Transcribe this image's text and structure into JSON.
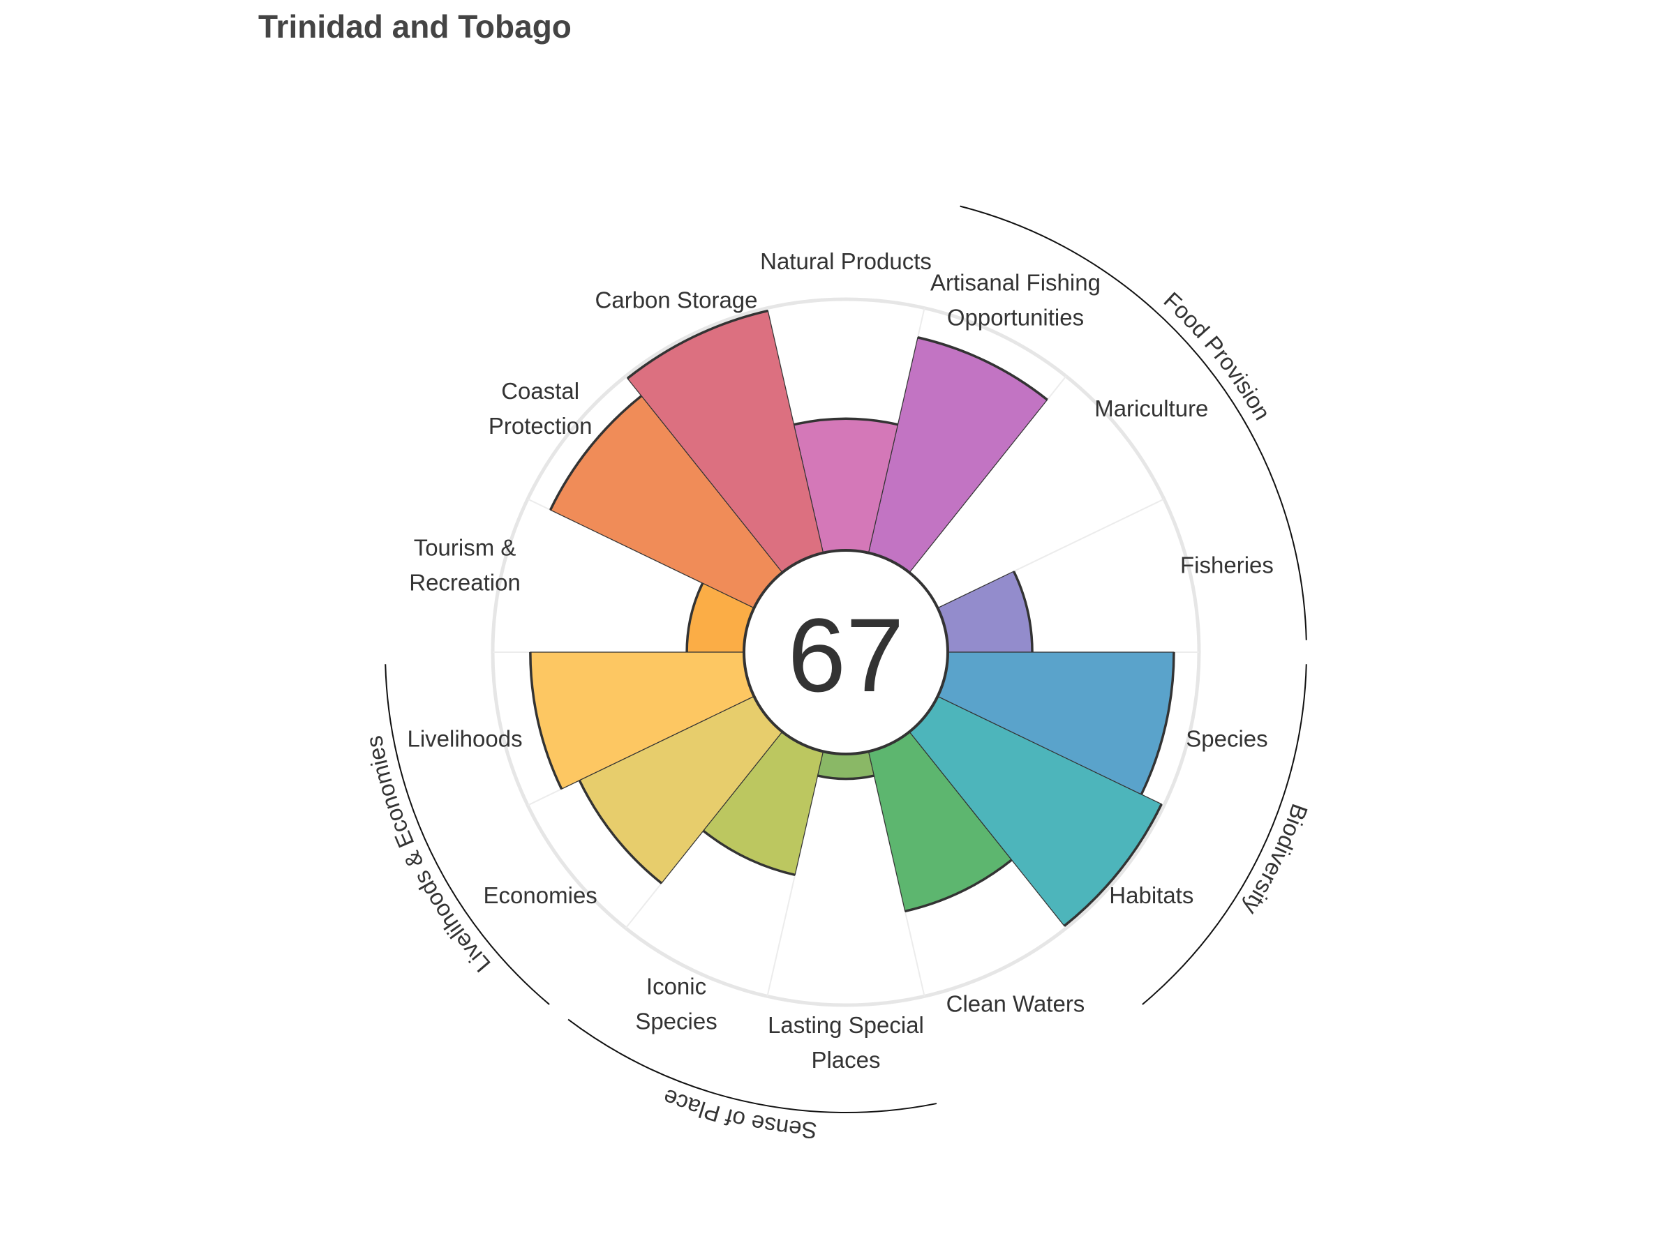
{
  "chart_data": {
    "type": "polar-bar",
    "title": "Trinidad and Tobago",
    "overall_score": "67",
    "rlim": [
      0,
      100
    ],
    "grid": true,
    "goals": [
      {
        "key": "fisheries",
        "label": [
          "Fisheries"
        ],
        "value": 34,
        "color": "#938ccc"
      },
      {
        "key": "mariculture",
        "label": [
          "Mariculture"
        ],
        "value": 0,
        "color": "#8e7fc7"
      },
      {
        "key": "artisanal-fishing",
        "label": [
          "Artisanal Fishing",
          "Opportunities"
        ],
        "value": 89,
        "color": "#c274c3"
      },
      {
        "key": "natural-products",
        "label": [
          "Natural Products"
        ],
        "value": 53,
        "color": "#d478b8"
      },
      {
        "key": "carbon-storage",
        "label": [
          "Carbon Storage"
        ],
        "value": 100,
        "color": "#dc7080"
      },
      {
        "key": "coastal-protection",
        "label": [
          "Coastal",
          "Protection"
        ],
        "value": 91,
        "color": "#f08c58"
      },
      {
        "key": "tourism",
        "label": [
          "Tourism &",
          "Recreation"
        ],
        "value": 23,
        "color": "#fbad46"
      },
      {
        "key": "livelihoods",
        "label": [
          "Livelihoods"
        ],
        "value": 86,
        "color": "#fdc762"
      },
      {
        "key": "economies",
        "label": [
          "Economies"
        ],
        "value": 78,
        "color": "#e7cd6c"
      },
      {
        "key": "iconic-species",
        "label": [
          "Iconic",
          "Species"
        ],
        "value": 51,
        "color": "#bcc760"
      },
      {
        "key": "lasting-special-places",
        "label": [
          "Lasting Special",
          "Places"
        ],
        "value": 10,
        "color": "#8ab866"
      },
      {
        "key": "clean-waters",
        "label": [
          "Clean Waters"
        ],
        "value": 66,
        "color": "#5db66f"
      },
      {
        "key": "habitats",
        "label": [
          "Habitats"
        ],
        "value": 100,
        "color": "#4db5bb"
      },
      {
        "key": "species",
        "label": [
          "Species"
        ],
        "value": 91,
        "color": "#5aa3cb"
      }
    ],
    "groups": [
      {
        "label": "Food Provision",
        "goals": [
          "fisheries",
          "mariculture",
          "artisanal-fishing"
        ]
      },
      {
        "label": "Biodiversity",
        "goals": [
          "habitats",
          "species"
        ]
      },
      {
        "label": "Sense of Place",
        "goals": [
          "iconic-species",
          "lasting-special-places"
        ]
      },
      {
        "label": "Livelihoods & Economies",
        "goals": [
          "livelihoods",
          "economies"
        ]
      }
    ]
  }
}
